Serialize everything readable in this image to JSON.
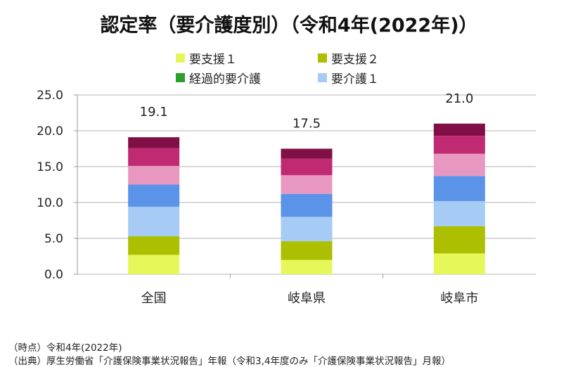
{
  "chart_data": {
    "type": "bar",
    "stacked": true,
    "title": "認定率（要介護度別）（令和4年(2022年)）",
    "categories": [
      "全国",
      "岐阜県",
      "岐阜市"
    ],
    "totals": [
      "19.1",
      "17.5",
      "21.0"
    ],
    "ylim": [
      0,
      25
    ],
    "yticks": [
      "0.0",
      "5.0",
      "10.0",
      "15.0",
      "20.0",
      "25.0"
    ],
    "grid": true,
    "legend_placement": "top",
    "legend": [
      {
        "name": "要支援１",
        "color": "#e6f75a"
      },
      {
        "name": "要支援２",
        "color": "#acbf00"
      },
      {
        "name": "経過的要介護",
        "color": "#2ca02c"
      },
      {
        "name": "要介護１",
        "color": "#a6ccf5"
      }
    ],
    "series": [
      {
        "key": "support1",
        "color": "#e6f75a",
        "values": [
          2.7,
          2.0,
          2.9
        ]
      },
      {
        "key": "support2",
        "color": "#acbf00",
        "values": [
          2.6,
          2.6,
          3.8
        ]
      },
      {
        "key": "transitional",
        "color": "#2ca02c",
        "values": [
          0,
          0,
          0
        ]
      },
      {
        "key": "care1",
        "color": "#a6ccf5",
        "values": [
          4.1,
          3.4,
          3.5
        ]
      },
      {
        "key": "care2",
        "color": "#5b93e8",
        "values": [
          3.1,
          3.2,
          3.5
        ]
      },
      {
        "key": "care3",
        "color": "#e898c0",
        "values": [
          2.6,
          2.6,
          3.1
        ]
      },
      {
        "key": "care4",
        "color": "#c02a72",
        "values": [
          2.5,
          2.3,
          2.5
        ]
      },
      {
        "key": "care5",
        "color": "#7f0f45",
        "values": [
          1.5,
          1.4,
          1.7
        ]
      }
    ]
  },
  "footer": {
    "line1": "（時点）令和4年(2022年)",
    "line2": "（出典）厚生労働省「介護保険事業状況報告」年報（令和3,4年度のみ「介護保険事業状況報告」月報）"
  }
}
